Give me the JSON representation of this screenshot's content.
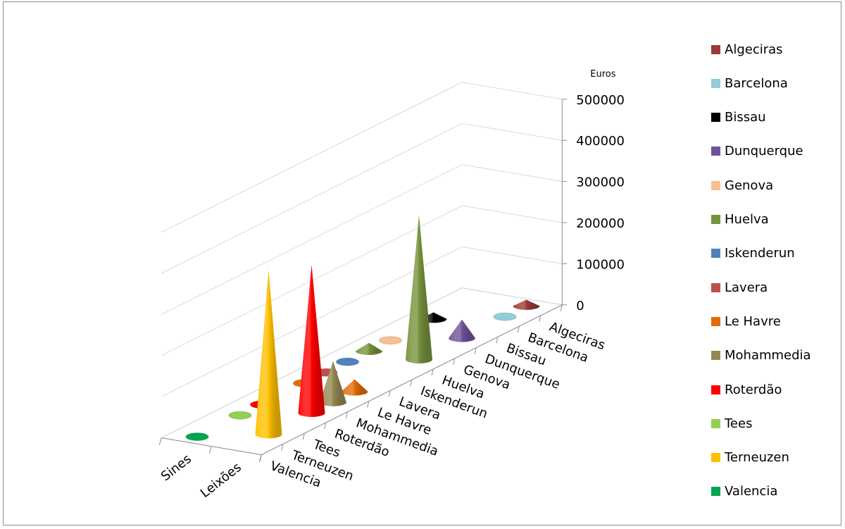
{
  "chart_data": {
    "type": "3d-cone",
    "unit_label": "Euros",
    "z_ticks": [
      "0",
      "100000",
      "200000",
      "300000",
      "400000",
      "500000"
    ],
    "zlim": [
      0,
      500000
    ],
    "x_categories": [
      "Sines",
      "Leixões"
    ],
    "y_categories": [
      "Valencia",
      "Terneuzen",
      "Tees",
      "Roterdão",
      "Mohammedia",
      "Le Havre",
      "Lavera",
      "Iskenderun",
      "Huelva",
      "Genova",
      "Dunquerque",
      "Bissau",
      "Barcelona",
      "Algeciras"
    ],
    "grid": "on",
    "legend_position": "right",
    "series": [
      {
        "name": "Algeciras",
        "color": "#9c3a37",
        "values": {
          "Leixões": 15000
        }
      },
      {
        "name": "Barcelona",
        "color": "#92cddc",
        "values": {
          "Leixões": 10000
        }
      },
      {
        "name": "Bissau",
        "color": "#000000",
        "values": {
          "Sines": 16000
        }
      },
      {
        "name": "Dunquerque",
        "color": "#6e539a",
        "values": {
          "Leixões": 45000
        }
      },
      {
        "name": "Genova",
        "color": "#f9be8f",
        "values": {
          "Sines": 2000
        }
      },
      {
        "name": "Huelva",
        "color": "#77933c",
        "values": {
          "Sines": 20000,
          "Leixões": 350000
        }
      },
      {
        "name": "Iskenderun",
        "color": "#4f81bd",
        "values": {
          "Sines": 3000
        }
      },
      {
        "name": "Lavera",
        "color": "#c0504d",
        "values": {
          "Sines": 10000
        }
      },
      {
        "name": "Le Havre",
        "color": "#e36c0a",
        "values": {
          "Sines": 2000,
          "Leixões": 30000
        }
      },
      {
        "name": "Mohammedia",
        "color": "#948a54",
        "values": {
          "Leixões": 100000
        }
      },
      {
        "name": "Roterdão",
        "color": "#ff0000",
        "values": {
          "Sines": 3000,
          "Leixões": 360000
        }
      },
      {
        "name": "Tees",
        "color": "#92d050",
        "values": {
          "Sines": 10000
        }
      },
      {
        "name": "Terneuzen",
        "color": "#ffc000",
        "values": {
          "Leixões": 400000
        }
      },
      {
        "name": "Valencia",
        "color": "#00a550",
        "values": {
          "Sines": 2000
        }
      }
    ]
  }
}
